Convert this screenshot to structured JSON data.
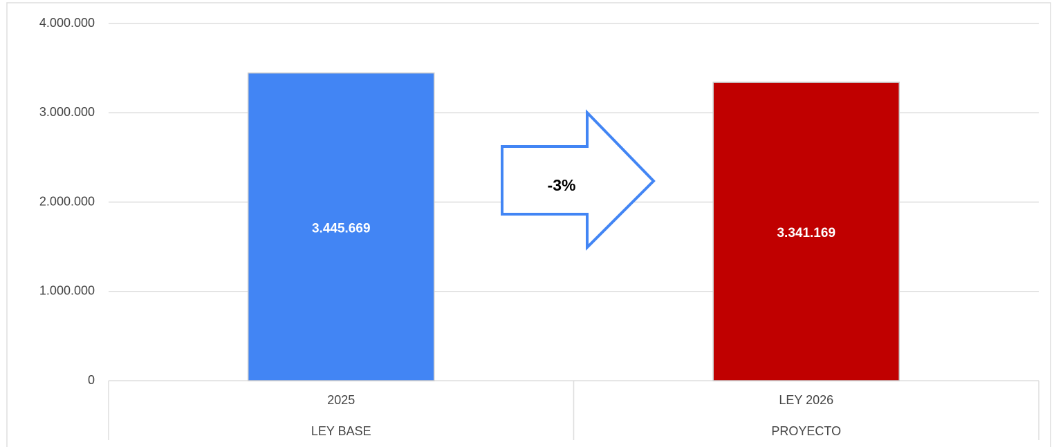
{
  "chart_data": {
    "type": "bar",
    "categories": [
      "2025",
      "LEY 2026"
    ],
    "category_groups": [
      "LEY BASE",
      "PROYECTO"
    ],
    "values": [
      3445669,
      3341169
    ],
    "value_labels": [
      "3.445.669",
      "3.341.169"
    ],
    "colors": [
      "#4285f4",
      "#c00000"
    ],
    "ylim": [
      0,
      4000000
    ],
    "yticks": [
      0,
      {
        "value": 1000000,
        "label": "1.000.000"
      },
      {
        "value": 2000000,
        "label": "2.000.000"
      },
      {
        "value": 3000000,
        "label": "3.000.000"
      },
      {
        "value": 4000000,
        "label": "4.000.000"
      }
    ],
    "grid": true,
    "annotation": "-3%"
  }
}
